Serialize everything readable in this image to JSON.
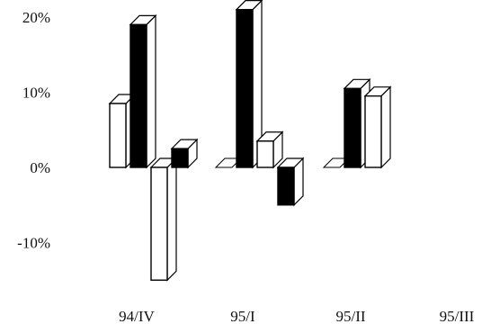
{
  "chart_data": {
    "type": "bar",
    "title": "",
    "xlabel": "",
    "ylabel": "",
    "ylim": [
      -15,
      20
    ],
    "y_ticks": [
      {
        "value": 20,
        "label": "20%"
      },
      {
        "value": 10,
        "label": "10%"
      },
      {
        "value": 0,
        "label": "0%"
      },
      {
        "value": -10,
        "label": "-10%"
      }
    ],
    "grid": false,
    "legend": "none",
    "categories": [
      "94/IV",
      "95/I",
      "95/II",
      "95/III"
    ],
    "series": [
      {
        "fill": "#ffffff",
        "values": [
          8.5,
          0,
          0,
          null
        ]
      },
      {
        "fill": "#000000",
        "values": [
          19,
          21,
          10.5,
          null
        ]
      },
      {
        "fill": "#ffffff",
        "values": [
          -15,
          3.5,
          9.5,
          null
        ]
      },
      {
        "fill": "#000000",
        "values": [
          2.5,
          -5,
          null,
          null
        ]
      }
    ]
  }
}
